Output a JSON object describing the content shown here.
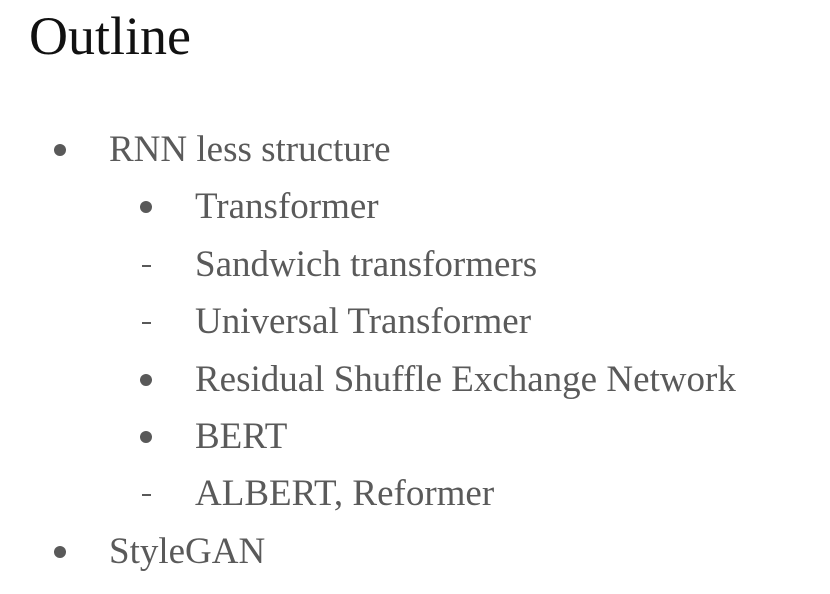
{
  "slide": {
    "title": "Outline",
    "items": [
      {
        "marker": "bullet-dot",
        "level": 1,
        "text": "RNN less structure"
      },
      {
        "marker": "bullet-dot",
        "level": 2,
        "text": "Transformer"
      },
      {
        "marker": "bullet-dash",
        "level": 2,
        "text": "Sandwich transformers"
      },
      {
        "marker": "bullet-dash",
        "level": 2,
        "text": "Universal Transformer"
      },
      {
        "marker": "bullet-dot",
        "level": 2,
        "text": "Residual Shuffle Exchange Network"
      },
      {
        "marker": "bullet-dot",
        "level": 2,
        "text": "BERT"
      },
      {
        "marker": "bullet-dash",
        "level": 2,
        "text": "ALBERT, Reformer"
      },
      {
        "marker": "bullet-dot",
        "level": 1,
        "text": "StyleGAN"
      }
    ]
  }
}
